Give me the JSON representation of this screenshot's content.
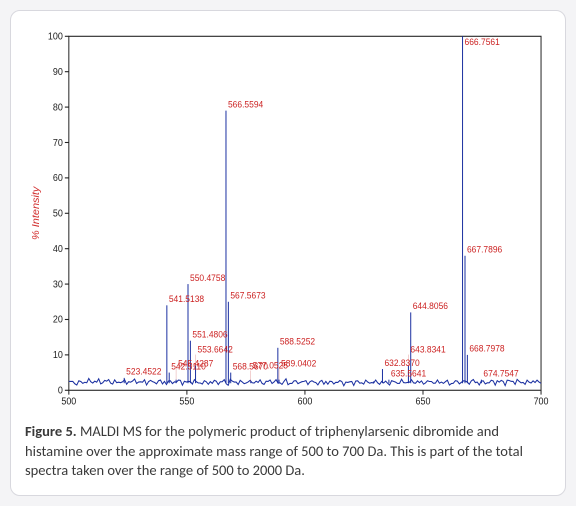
{
  "chart": {
    "type": "mass-spectrum",
    "background_color": "#ffffff",
    "card_border_color": "#d8d8de",
    "plot_border_color": "#222222",
    "xlim": [
      500,
      700
    ],
    "ylim": [
      0,
      100
    ],
    "ytick_step": 10,
    "yticks": [
      0,
      10,
      20,
      30,
      40,
      50,
      60,
      70,
      80,
      90,
      100
    ],
    "xticks": [
      500,
      550,
      600,
      650,
      700
    ],
    "xtick_labels": [
      "500",
      "550",
      "600",
      "650",
      "700"
    ],
    "ylabel": "% Intensity",
    "ylabel_color": "#d12a2a",
    "ylabel_fontsize": 10,
    "tick_fontsize": 9,
    "peak_label_color": "#c22222",
    "peak_label_fontsize": 8.5,
    "line_color": "#1a2fa0",
    "line_width": 1,
    "noise_baseline": 2.0,
    "peaks": [
      {
        "mz": 523.4522,
        "intensity": 3.5,
        "label": "523.4522",
        "show_label": true
      },
      {
        "mz": 541.5138,
        "intensity": 24.0,
        "label": "541.5138",
        "show_label": true
      },
      {
        "mz": 542.511,
        "intensity": 5.0,
        "label": "542.5110",
        "show_label": true
      },
      {
        "mz": 545.4287,
        "intensity": 3.0,
        "label": "545.4287",
        "show_label": true
      },
      {
        "mz": 550.4758,
        "intensity": 30.0,
        "label": "550.4758",
        "show_label": true
      },
      {
        "mz": 551.4806,
        "intensity": 14.0,
        "label": "551.4806",
        "show_label": true
      },
      {
        "mz": 553.6642,
        "intensity": 7.0,
        "label": "553.6642",
        "show_label": true
      },
      {
        "mz": 566.5594,
        "intensity": 79.0,
        "label": "566.5594",
        "show_label": true
      },
      {
        "mz": 567.5673,
        "intensity": 25.0,
        "label": "567.5673",
        "show_label": true
      },
      {
        "mz": 568.567,
        "intensity": 5.0,
        "label": "568.5670",
        "show_label": true
      },
      {
        "mz": 577.0525,
        "intensity": 2.5,
        "label": "577.0525",
        "show_label": true
      },
      {
        "mz": 588.5252,
        "intensity": 12.0,
        "label": "588.5252",
        "show_label": true
      },
      {
        "mz": 589.0402,
        "intensity": 3.0,
        "label": "589.0402",
        "show_label": true
      },
      {
        "mz": 629.0,
        "intensity": 2.5,
        "label": "629",
        "show_label": false
      },
      {
        "mz": 632.837,
        "intensity": 6.0,
        "label": "632.8370",
        "show_label": true
      },
      {
        "mz": 635.5641,
        "intensity": 3.0,
        "label": "635.5641",
        "show_label": true
      },
      {
        "mz": 643.8341,
        "intensity": 7.0,
        "label": "643.8341",
        "show_label": true
      },
      {
        "mz": 644.8056,
        "intensity": 22.0,
        "label": "644.8056",
        "show_label": true
      },
      {
        "mz": 666.7561,
        "intensity": 100.0,
        "label": "666.7561",
        "show_label": true
      },
      {
        "mz": 667.7896,
        "intensity": 38.0,
        "label": "667.7896",
        "show_label": true
      },
      {
        "mz": 668.7978,
        "intensity": 10.0,
        "label": "668.7978",
        "show_label": true
      },
      {
        "mz": 674.7547,
        "intensity": 3.0,
        "label": "674.7547",
        "show_label": true
      }
    ]
  },
  "caption": {
    "lead": "Figure 5.",
    "text": " MALDI MS for the polymeric product of triphenylarsenic dibromide and histamine over the approximate mass range of 500 to 700 Da. This is part of the total spectra taken over the range of 500 to 2000 Da."
  }
}
